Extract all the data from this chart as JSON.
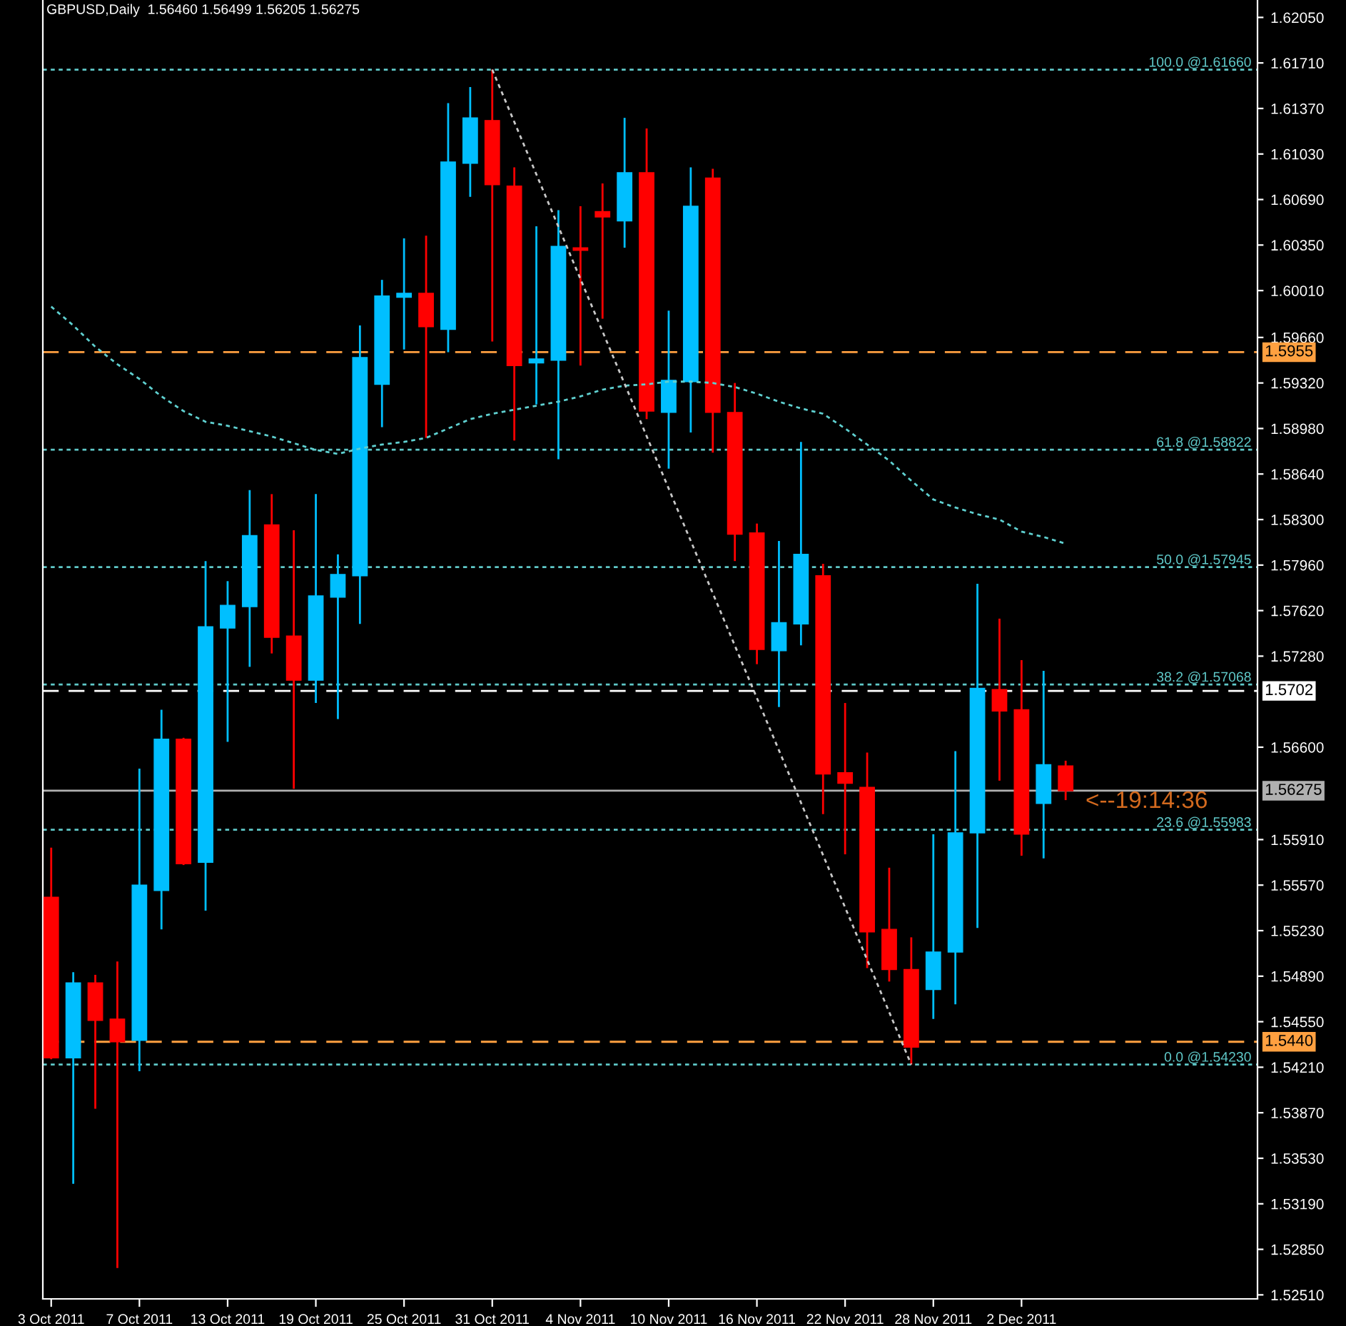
{
  "chart_data": {
    "type": "candlestick",
    "title": "GBPUSD,Daily  1.56460 1.56499 1.56205 1.56275",
    "categories": [
      "3 Oct 2011",
      null,
      null,
      null,
      "7 Oct 2011",
      null,
      null,
      null,
      "13 Oct 2011",
      null,
      null,
      null,
      "19 Oct 2011",
      null,
      null,
      null,
      "25 Oct 2011",
      null,
      null,
      null,
      "31 Oct 2011",
      null,
      null,
      null,
      "4 Nov 2011",
      null,
      null,
      null,
      "10 Nov 2011",
      null,
      null,
      null,
      "16 Nov 2011",
      null,
      null,
      null,
      "22 Nov 2011",
      null,
      null,
      null,
      "28 Nov 2011",
      null,
      null,
      null,
      "2 Dec 2011",
      null,
      null,
      null,
      null,
      null,
      null,
      null,
      null,
      null,
      null
    ],
    "ohlc": [
      [
        1.5548,
        1.5585,
        1.5427,
        1.5428
      ],
      [
        1.5428,
        1.5492,
        1.5334,
        1.5484
      ],
      [
        1.5484,
        1.549,
        1.539,
        1.5456
      ],
      [
        1.5457,
        1.55,
        1.5271,
        1.544
      ],
      [
        1.5441,
        1.5644,
        1.5418,
        1.5557
      ],
      [
        1.5553,
        1.5688,
        1.5524,
        1.5666
      ],
      [
        1.5666,
        1.5667,
        1.5572,
        1.5573
      ],
      [
        1.5574,
        1.5799,
        1.5538,
        1.575
      ],
      [
        1.5749,
        1.5784,
        1.5664,
        1.5766
      ],
      [
        1.5765,
        1.5852,
        1.572,
        1.5818
      ],
      [
        1.5826,
        1.5849,
        1.573,
        1.5742
      ],
      [
        1.5743,
        1.5822,
        1.5629,
        1.571
      ],
      [
        1.571,
        1.5849,
        1.5693,
        1.5773
      ],
      [
        1.5772,
        1.5804,
        1.5681,
        1.5789
      ],
      [
        1.5788,
        1.5975,
        1.5752,
        1.5951
      ],
      [
        1.5931,
        1.6009,
        1.5899,
        1.5997
      ],
      [
        1.5996,
        1.604,
        1.5957,
        1.5999
      ],
      [
        1.5999,
        1.6042,
        1.5891,
        1.5974
      ],
      [
        1.5972,
        1.6141,
        1.5955,
        1.6097
      ],
      [
        1.6096,
        1.6153,
        1.6071,
        1.613
      ],
      [
        1.6128,
        1.6166,
        1.5963,
        1.608
      ],
      [
        1.6079,
        1.6093,
        1.5889,
        1.5945
      ],
      [
        1.5947,
        1.6049,
        1.5916,
        1.595
      ],
      [
        1.5949,
        1.6061,
        1.5875,
        1.6034
      ],
      [
        1.6033,
        1.6064,
        1.5945,
        1.6031
      ],
      [
        1.606,
        1.6081,
        1.598,
        1.6056
      ],
      [
        1.6053,
        1.613,
        1.6033,
        1.6089
      ],
      [
        1.6089,
        1.6122,
        1.5905,
        1.5911
      ],
      [
        1.591,
        1.5986,
        1.5868,
        1.5934
      ],
      [
        1.5933,
        1.6093,
        1.5895,
        1.6064
      ],
      [
        1.6085,
        1.6092,
        1.588,
        1.591
      ],
      [
        1.591,
        1.5932,
        1.5799,
        1.5819
      ],
      [
        1.582,
        1.5827,
        1.5722,
        1.5733
      ],
      [
        1.5732,
        1.5814,
        1.569,
        1.5753
      ],
      [
        1.5752,
        1.5888,
        1.5736,
        1.5804
      ],
      [
        1.5788,
        1.5797,
        1.561,
        1.564
      ],
      [
        1.5641,
        1.5693,
        1.558,
        1.5633
      ],
      [
        1.563,
        1.5656,
        1.5495,
        1.5522
      ],
      [
        1.5524,
        1.557,
        1.5485,
        1.5494
      ],
      [
        1.5494,
        1.5518,
        1.5423,
        1.5436
      ],
      [
        1.5479,
        1.5595,
        1.5457,
        1.5507
      ],
      [
        1.5507,
        1.5657,
        1.5468,
        1.5596
      ],
      [
        1.5596,
        1.5782,
        1.5525,
        1.5704
      ],
      [
        1.5703,
        1.5756,
        1.5635,
        1.5687
      ],
      [
        1.5688,
        1.5725,
        1.5579,
        1.5595
      ],
      [
        1.5618,
        1.5717,
        1.5577,
        1.5647
      ],
      [
        1.5646,
        1.56499,
        1.56205,
        1.56275
      ],
      null,
      null,
      null,
      null,
      null,
      null,
      null,
      null
    ],
    "colors": [
      "#ff0000",
      "#00bfff",
      "#ff0000",
      "#ff0000",
      "#00bfff",
      "#00bfff",
      "#ff0000",
      "#00bfff",
      "#00bfff",
      "#00bfff",
      "#ff0000",
      "#ff0000",
      "#00bfff",
      "#00bfff",
      "#00bfff",
      "#00bfff",
      "#00bfff",
      "#ff0000",
      "#00bfff",
      "#00bfff",
      "#ff0000",
      "#ff0000",
      "#00bfff",
      "#00bfff",
      "#ff0000",
      "#ff0000",
      "#00bfff",
      "#ff0000",
      "#00bfff",
      "#00bfff",
      "#ff0000",
      "#ff0000",
      "#ff0000",
      "#00bfff",
      "#00bfff",
      "#ff0000",
      "#ff0000",
      "#ff0000",
      "#ff0000",
      "#ff0000",
      "#00bfff",
      "#00bfff",
      "#00bfff",
      "#ff0000",
      "#ff0000",
      "#00bfff",
      "#ff0000",
      null,
      null,
      null,
      null,
      null,
      null,
      null,
      null
    ],
    "series": [
      {
        "type": "line",
        "color": "#5fd0d0",
        "values": [
          1.5989,
          1.5975,
          1.5959,
          1.5946,
          1.5935,
          1.5922,
          1.5911,
          1.5903,
          1.59,
          1.5896,
          1.5892,
          1.5887,
          1.5882,
          1.5879,
          1.5883,
          1.5886,
          1.5888,
          1.5891,
          1.5898,
          1.5905,
          1.5909,
          1.5912,
          1.5915,
          1.5918,
          1.5922,
          1.5927,
          1.593,
          1.5931,
          1.5933,
          1.5933,
          1.5932,
          1.5929,
          1.5924,
          1.5918,
          1.5913,
          1.5909,
          1.5898,
          1.5886,
          1.5874,
          1.5859,
          1.5845,
          1.5839,
          1.5834,
          1.583,
          1.5821,
          1.5817,
          1.5812,
          null,
          null,
          null,
          null,
          null,
          null,
          null,
          null
        ]
      },
      {
        "type": "line",
        "color": "#c8c8c8",
        "values": [
          null,
          null,
          null,
          null,
          null,
          null,
          null,
          null,
          null,
          null,
          null,
          null,
          null,
          null,
          null,
          null,
          null,
          null,
          null,
          null,
          1.6166,
          null,
          null,
          null,
          null,
          null,
          null,
          null,
          null,
          null,
          null,
          null,
          null,
          null,
          null,
          null,
          null,
          null,
          null,
          1.5423,
          null,
          null,
          null,
          null,
          null,
          null,
          null,
          null,
          null,
          null,
          null,
          null,
          null,
          null,
          null
        ]
      }
    ],
    "line_style": "dotted",
    "ylim": [
      1.5248,
      1.6218
    ],
    "yticks": [
      {
        "value": 1.6205,
        "label": "1.62050"
      },
      {
        "value": 1.6171,
        "label": "1.61710"
      },
      {
        "value": 1.6137,
        "label": "1.61370"
      },
      {
        "value": 1.6103,
        "label": "1.61030"
      },
      {
        "value": 1.6069,
        "label": "1.60690"
      },
      {
        "value": 1.6035,
        "label": "1.60350"
      },
      {
        "value": 1.6001,
        "label": "1.60010"
      },
      {
        "value": 1.5966,
        "label": "1.59660"
      },
      {
        "value": 1.5932,
        "label": "1.59320"
      },
      {
        "value": 1.5898,
        "label": "1.58980"
      },
      {
        "value": 1.5864,
        "label": "1.58640"
      },
      {
        "value": 1.583,
        "label": "1.58300"
      },
      {
        "value": 1.5796,
        "label": "1.57960"
      },
      {
        "value": 1.5762,
        "label": "1.57620"
      },
      {
        "value": 1.5728,
        "label": "1.57280"
      },
      {
        "value": 1.566,
        "label": "1.56600"
      },
      {
        "value": 1.5591,
        "label": "1.55910"
      },
      {
        "value": 1.5557,
        "label": "1.55570"
      },
      {
        "value": 1.5523,
        "label": "1.55230"
      },
      {
        "value": 1.5489,
        "label": "1.54890"
      },
      {
        "value": 1.5455,
        "label": "1.54550"
      },
      {
        "value": 1.5421,
        "label": "1.54210"
      },
      {
        "value": 1.5387,
        "label": "1.53870"
      },
      {
        "value": 1.5353,
        "label": "1.53530"
      },
      {
        "value": 1.5319,
        "label": "1.53190"
      },
      {
        "value": 1.5285,
        "label": "1.52850"
      },
      {
        "value": 1.5251,
        "label": "1.52510"
      }
    ],
    "ref_lines": [
      {
        "axis": "y",
        "value": 1.5955,
        "label": "1.5955",
        "color": "#ffa040",
        "line_style": "dashed"
      },
      {
        "axis": "y",
        "value": 1.544,
        "label": "1.5440",
        "color": "#ffa040",
        "line_style": "dashed"
      },
      {
        "axis": "y",
        "value": 1.5702,
        "label": "1.5702",
        "color": "#ffffff",
        "line_style": "dashed"
      },
      {
        "axis": "y",
        "value": 1.56275,
        "label": "1.56275",
        "color": "#b0b0b0",
        "line_style": "solid"
      },
      {
        "axis": "y",
        "value": 1.6166,
        "label": "100.0 @1.61660",
        "color": "#5fc8c8",
        "line_style": "dotted"
      },
      {
        "axis": "y",
        "value": 1.58822,
        "label": "61.8 @1.58822",
        "color": "#5fc8c8",
        "line_style": "dotted"
      },
      {
        "axis": "y",
        "value": 1.57945,
        "label": "50.0 @1.57945",
        "color": "#5fc8c8",
        "line_style": "dotted"
      },
      {
        "axis": "y",
        "value": 1.57068,
        "label": "38.2 @1.57068",
        "color": "#5fc8c8",
        "line_style": "dotted"
      },
      {
        "axis": "y",
        "value": 1.55983,
        "label": "23.6 @1.55983",
        "color": "#5fc8c8",
        "line_style": "dotted"
      },
      {
        "axis": "y",
        "value": 1.5423,
        "label": "0.0 @1.54230",
        "color": "#5fc8c8",
        "line_style": "dotted"
      }
    ],
    "annotations": [
      {
        "text": "<--19:14:36",
        "y": 1.56275
      }
    ],
    "grid": false,
    "legend": false
  }
}
